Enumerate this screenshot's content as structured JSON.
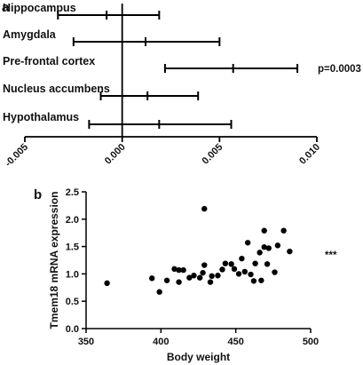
{
  "panels": {
    "a": {
      "letter": "a"
    },
    "b": {
      "letter": "b"
    }
  },
  "chart_data": [
    {
      "panel": "a",
      "type": "forest",
      "categories": [
        "Hippocampus",
        "Amygdala",
        "Pre-frontal cortex",
        "Nucleus accumbens",
        "Hypothalamus"
      ],
      "estimates": [
        -0.0008,
        0.0012,
        0.0057,
        0.0013,
        0.0019
      ],
      "ci_low": [
        -0.0033,
        -0.0025,
        0.0022,
        -0.0011,
        -0.0017
      ],
      "ci_high": [
        0.0019,
        0.005,
        0.009,
        0.0039,
        0.0056
      ],
      "xlim": [
        -0.005,
        0.01
      ],
      "xticks": [
        "-0.005",
        "0.000",
        "0.005",
        "0.010"
      ],
      "xtick_values": [
        -0.005,
        0.0,
        0.005,
        0.01
      ],
      "reference_line": 0.0,
      "annotations": [
        {
          "category": "Pre-frontal cortex",
          "text": "p=0.0003"
        }
      ]
    },
    {
      "panel": "b",
      "type": "scatter",
      "xlabel": "Body weight",
      "ylabel": "Tmem18 mRNA expression",
      "xlim": [
        350,
        500
      ],
      "ylim": [
        0.0,
        2.5
      ],
      "xticks": [
        "350",
        "400",
        "450",
        "500"
      ],
      "xtick_values": [
        350,
        400,
        450,
        500
      ],
      "yticks": [
        "0.0",
        "0.5",
        "1.0",
        "1.5",
        "2.0",
        "2.5"
      ],
      "ytick_values": [
        0.0,
        0.5,
        1.0,
        1.5,
        2.0,
        2.5
      ],
      "annotation": "***",
      "points": [
        [
          364,
          0.83
        ],
        [
          394,
          0.92
        ],
        [
          399,
          0.67
        ],
        [
          404,
          0.88
        ],
        [
          409,
          1.09
        ],
        [
          412,
          0.85
        ],
        [
          412,
          1.07
        ],
        [
          415,
          1.07
        ],
        [
          419,
          0.93
        ],
        [
          422,
          0.97
        ],
        [
          426,
          0.93
        ],
        [
          428,
          1.02
        ],
        [
          429,
          1.16
        ],
        [
          429,
          2.19
        ],
        [
          433,
          0.85
        ],
        [
          434,
          0.96
        ],
        [
          438,
          0.97
        ],
        [
          441,
          1.08
        ],
        [
          443,
          1.19
        ],
        [
          447,
          1.18
        ],
        [
          449,
          1.09
        ],
        [
          452,
          1.0
        ],
        [
          454,
          1.28
        ],
        [
          456,
          1.04
        ],
        [
          458,
          1.57
        ],
        [
          460,
          0.99
        ],
        [
          462,
          0.87
        ],
        [
          463,
          1.19
        ],
        [
          466,
          1.39
        ],
        [
          467,
          0.88
        ],
        [
          469,
          1.49
        ],
        [
          469,
          1.79
        ],
        [
          471,
          1.18
        ],
        [
          472,
          1.47
        ],
        [
          476,
          1.03
        ],
        [
          478,
          1.52
        ],
        [
          482,
          1.79
        ],
        [
          486,
          1.41
        ]
      ]
    }
  ]
}
